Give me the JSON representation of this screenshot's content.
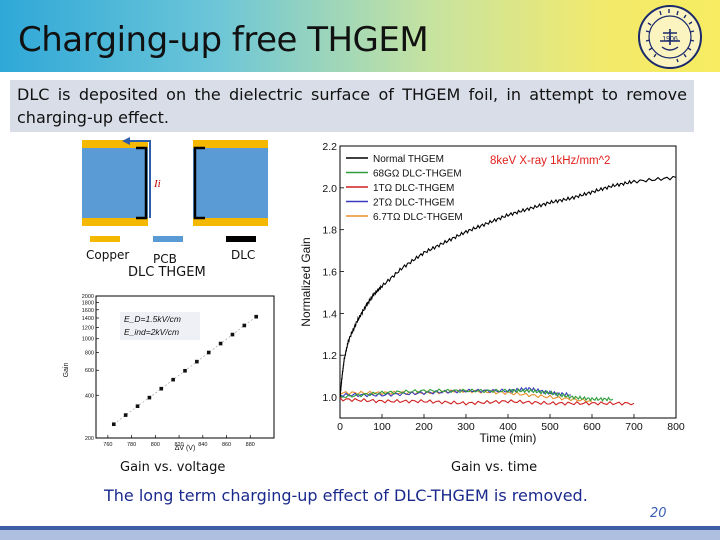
{
  "title": "Charging-up free THGEM",
  "logo": {
    "icon": "university-seal-icon",
    "text": "1906"
  },
  "description": "DLC is deposited on the dielectric surface of THGEM foil, in attempt to remove charging-up effect.",
  "diagram": {
    "current_label": "Ii",
    "legend": {
      "copper": "Copper",
      "pcb": "PCB",
      "dlc": "DLC"
    },
    "label": "DLC THGEM",
    "colors": {
      "copper": "#f5b800",
      "pcb": "#5b9bd5",
      "dlc": "#000000",
      "arrow": "#2e5ea8",
      "current": "#c00000"
    }
  },
  "gain_voltage_chart": {
    "caption": "Gain vs. voltage",
    "xlabel": "ΔV (V)",
    "ylabel": "Gain",
    "annotation_1": "E_D=1.5kV/cm",
    "annotation_2": "E_ind=2kV/cm",
    "x_ticks": [
      "760",
      "780",
      "800",
      "820",
      "840",
      "860",
      "880"
    ],
    "y_ticks": [
      "200",
      "400",
      "600",
      "800",
      "1000",
      "1200",
      "1400",
      "1600",
      "1800",
      "2000"
    ]
  },
  "gain_time_chart": {
    "caption": "Gain vs. time",
    "annotation": "8keV X-ray 1kHz/mm^2"
  },
  "bottom_note": "The long term charging-up effect of DLC-THGEM is removed.",
  "page_number": "20",
  "chart_data": [
    {
      "type": "scatter",
      "title": "",
      "xlabel": "ΔV (V)",
      "ylabel": "Gain",
      "xlim": [
        750,
        900
      ],
      "ylim": [
        200,
        2000
      ],
      "yscale": "log",
      "x": [
        765,
        775,
        785,
        795,
        805,
        815,
        825,
        835,
        845,
        855,
        865,
        875,
        885
      ],
      "y": [
        250,
        290,
        335,
        385,
        445,
        515,
        595,
        690,
        800,
        925,
        1070,
        1240,
        1430
      ]
    },
    {
      "type": "line",
      "title": "",
      "xlabel": "Time (min)",
      "ylabel": "Normalized Gain",
      "xlim": [
        0,
        800
      ],
      "ylim": [
        0.9,
        2.2
      ],
      "x_ticks": [
        "0",
        "100",
        "200",
        "300",
        "400",
        "500",
        "600",
        "700",
        "800"
      ],
      "y_ticks": [
        "1.0",
        "1.2",
        "1.4",
        "1.6",
        "1.8",
        "2.0",
        "2.2"
      ],
      "series": [
        {
          "name": "Normal THGEM",
          "color": "#000000",
          "x": [
            0,
            5,
            10,
            20,
            40,
            60,
            80,
            100,
            150,
            200,
            250,
            300,
            350,
            400,
            450,
            500,
            550,
            600,
            650,
            700,
            800
          ],
          "y": [
            1.0,
            1.1,
            1.18,
            1.27,
            1.36,
            1.43,
            1.49,
            1.53,
            1.62,
            1.69,
            1.74,
            1.79,
            1.83,
            1.87,
            1.9,
            1.93,
            1.95,
            1.98,
            2.01,
            2.03,
            2.05
          ]
        },
        {
          "name": "68GΩ DLC-THGEM",
          "color": "#2e9e3a",
          "x": [
            0,
            100,
            200,
            300,
            400,
            450,
            500,
            550,
            600,
            650
          ],
          "y": [
            1.0,
            1.02,
            1.03,
            1.03,
            1.03,
            1.03,
            1.02,
            1.0,
            0.99,
            0.99
          ]
        },
        {
          "name": "1TΩ DLC-THGEM",
          "color": "#d02020",
          "x": [
            0,
            100,
            200,
            300,
            400,
            500,
            600,
            700
          ],
          "y": [
            0.99,
            0.98,
            0.98,
            0.97,
            0.98,
            0.97,
            0.97,
            0.97
          ]
        },
        {
          "name": "2TΩ DLC-THGEM",
          "color": "#3a3ac0",
          "x": [
            0,
            100,
            200,
            300,
            400,
            450,
            500,
            550
          ],
          "y": [
            1.01,
            1.01,
            1.02,
            1.03,
            1.03,
            1.04,
            1.02,
            1.01
          ]
        },
        {
          "name": "6.7TΩ DLC-THGEM",
          "color": "#e8902a",
          "x": [
            0,
            100,
            200,
            300,
            400,
            500,
            600
          ],
          "y": [
            1.02,
            1.02,
            1.02,
            1.03,
            1.02,
            1.0,
            0.98
          ]
        }
      ]
    }
  ]
}
